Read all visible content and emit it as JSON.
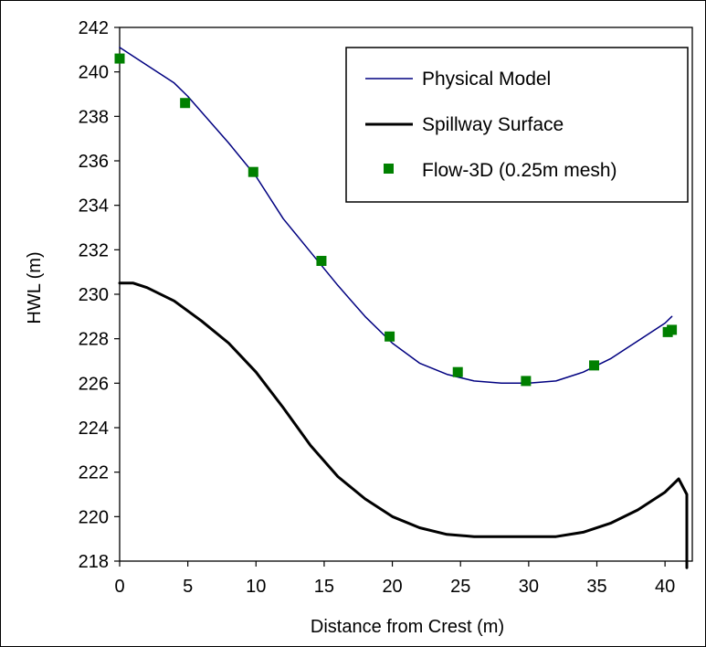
{
  "chart_data": {
    "type": "line",
    "title": "",
    "xlabel": "Distance from Crest (m)",
    "ylabel": "HWL (m)",
    "xlim": [
      0,
      42
    ],
    "ylim": [
      218,
      242
    ],
    "xticks": [
      0,
      5,
      10,
      15,
      20,
      25,
      30,
      35,
      40
    ],
    "xtick_labels": [
      "0",
      "5",
      "10",
      "15",
      "20",
      "25",
      "30",
      "35",
      "40"
    ],
    "yticks": [
      218,
      220,
      222,
      224,
      226,
      228,
      230,
      232,
      234,
      236,
      238,
      240,
      242
    ],
    "ytick_labels": [
      "218",
      "220",
      "222",
      "224",
      "226",
      "228",
      "230",
      "232",
      "234",
      "236",
      "238",
      "240",
      "242"
    ],
    "grid": false,
    "legend": "top-right",
    "series": [
      {
        "name": "Physical Model",
        "kind": "line",
        "color": "#000080",
        "x": [
          0,
          2,
          4,
          5,
          6,
          8,
          10,
          12,
          14,
          16,
          18,
          20,
          22,
          24,
          26,
          28,
          30,
          32,
          34,
          36,
          38,
          40,
          40.5
        ],
        "y": [
          241.1,
          240.3,
          239.5,
          238.9,
          238.2,
          236.8,
          235.3,
          233.4,
          231.9,
          230.4,
          229.0,
          227.8,
          226.9,
          226.4,
          226.1,
          226.0,
          226.0,
          226.1,
          226.5,
          227.1,
          227.9,
          228.7,
          229.0
        ]
      },
      {
        "name": "Spillway Surface",
        "kind": "line",
        "color": "#000000",
        "x": [
          0,
          1,
          2,
          4,
          6,
          8,
          10,
          12,
          14,
          16,
          18,
          20,
          22,
          24,
          26,
          28,
          30,
          32,
          34,
          36,
          38,
          40,
          41,
          41.6,
          41.6
        ],
        "y": [
          230.5,
          230.5,
          230.3,
          229.7,
          228.8,
          227.8,
          226.5,
          224.9,
          223.2,
          221.8,
          220.8,
          220.0,
          219.5,
          219.2,
          219.1,
          219.1,
          219.1,
          219.1,
          219.3,
          219.7,
          220.3,
          221.1,
          221.7,
          221.0,
          217.7
        ]
      },
      {
        "name": "Flow-3D (0.25m mesh)",
        "kind": "scatter",
        "color": "#008000",
        "x": [
          0,
          4.8,
          9.8,
          14.8,
          19.8,
          24.8,
          29.8,
          34.8,
          40.2,
          40.5
        ],
        "y": [
          240.6,
          238.6,
          235.5,
          231.5,
          228.1,
          226.5,
          226.1,
          226.8,
          228.3,
          228.4
        ]
      }
    ]
  }
}
